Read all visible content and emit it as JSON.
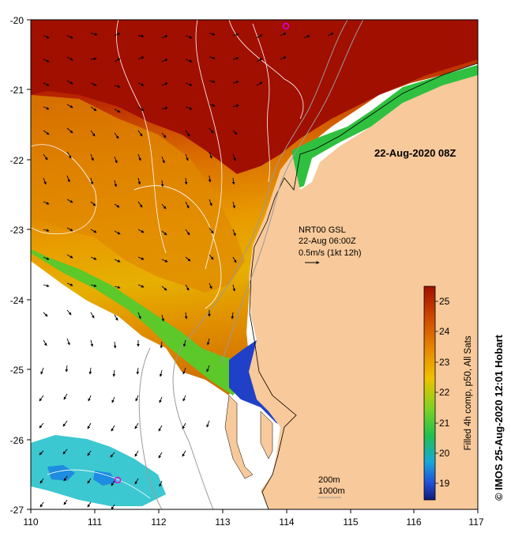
{
  "map": {
    "date_label": "22-Aug-2020 08Z",
    "x_ticks": [
      "110",
      "111",
      "112",
      "113",
      "114",
      "115",
      "116",
      "117"
    ],
    "y_ticks": [
      "-20",
      "-21",
      "-22",
      "-23",
      "-24",
      "-25",
      "-26",
      "-27"
    ],
    "lon_range": [
      110,
      117
    ],
    "lat_range": [
      -27,
      -20
    ],
    "current_legend": {
      "line1": "NRT00 GSL",
      "line2": "22-Aug 06:00Z",
      "line3": "0.5m/s (1kt 12h)"
    },
    "contour_legend": {
      "line1": "200m",
      "line2": "1000m"
    },
    "colorbar": {
      "ticks": [
        "25",
        "24",
        "23",
        "22",
        "21",
        "20",
        "19"
      ],
      "range": [
        18.5,
        25.5
      ],
      "label": "Filled 4h comp, p50, All Sats"
    },
    "credit": "© IMOS 25-Aug-2020 12:01 Hobart",
    "colors": {
      "land": "#F8C99A",
      "no_data": "#FFFFFF",
      "warm": "#A00F00",
      "cool": "#0A1E8C",
      "marker": "#E000E0"
    }
  }
}
